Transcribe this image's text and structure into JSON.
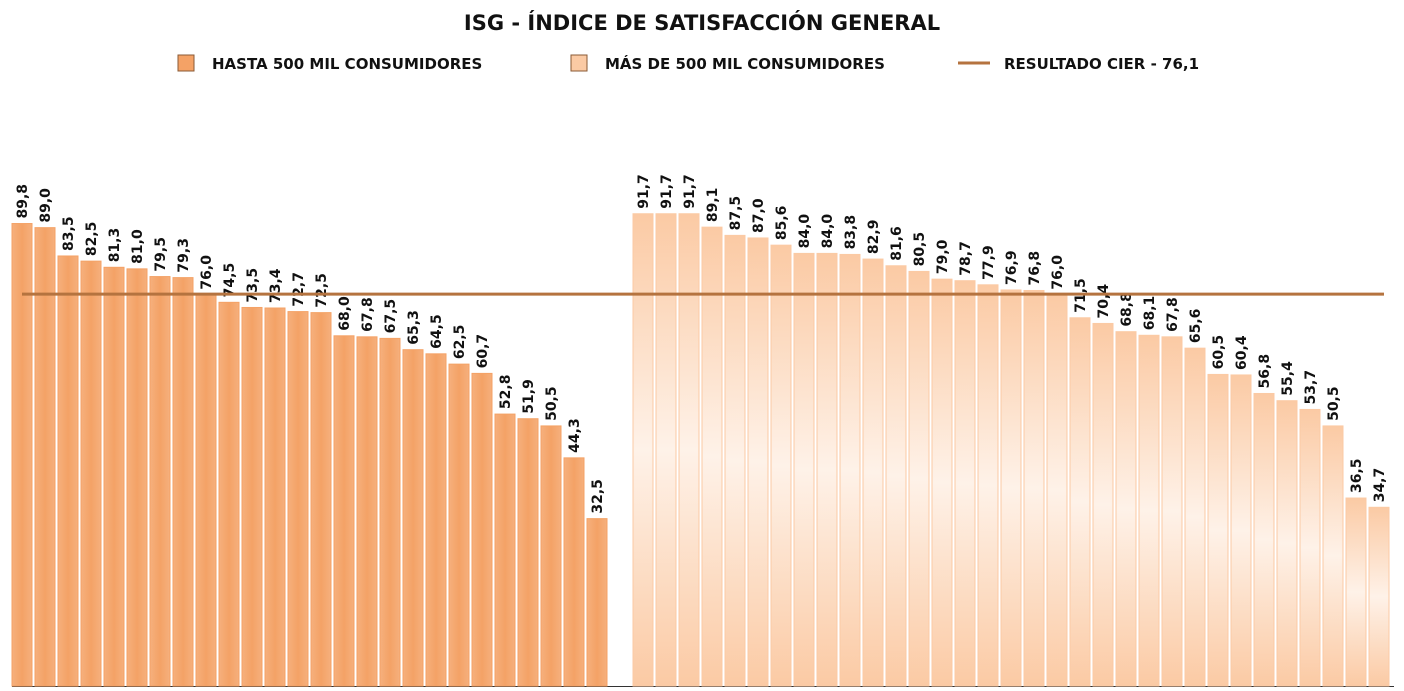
{
  "chart_data": {
    "type": "bar",
    "title": "ISG - ÍNDICE DE SATISFACCIÓN GENERAL",
    "ylim": [
      0,
      100
    ],
    "series": [
      {
        "name": "HASTA 500 MIL CONSUMIDORES",
        "color": "#f4a266",
        "values": [
          89.8,
          89.0,
          83.5,
          82.5,
          81.3,
          81.0,
          79.5,
          79.3,
          76.0,
          74.5,
          73.5,
          73.4,
          72.7,
          72.5,
          68.0,
          67.8,
          67.5,
          65.3,
          64.5,
          62.5,
          60.7,
          52.8,
          51.9,
          50.5,
          44.3,
          32.5
        ],
        "value_labels": [
          "89,8",
          "89,0",
          "83,5",
          "82,5",
          "81,3",
          "81,0",
          "79,5",
          "79,3",
          "76,0",
          "74,5",
          "73,5",
          "73,4",
          "72,7",
          "72,5",
          "68,0",
          "67,8",
          "67,5",
          "65,3",
          "64,5",
          "62,5",
          "60,7",
          "52,8",
          "51,9",
          "50,5",
          "44,3",
          "32,5"
        ]
      },
      {
        "name": "MÁS DE 500 MIL CONSUMIDORES",
        "color": "#fbcaa4",
        "values": [
          91.7,
          91.7,
          91.7,
          89.1,
          87.5,
          87.0,
          85.6,
          84.0,
          84.0,
          83.8,
          82.9,
          81.6,
          80.5,
          79.0,
          78.7,
          77.9,
          76.9,
          76.8,
          76.0,
          71.5,
          70.4,
          68.8,
          68.1,
          67.8,
          65.6,
          60.5,
          60.4,
          56.8,
          55.4,
          53.7,
          50.5,
          36.5,
          34.7
        ],
        "value_labels": [
          "91,7",
          "91,7",
          "91,7",
          "89,1",
          "87,5",
          "87,0",
          "85,6",
          "84,0",
          "84,0",
          "83,8",
          "82,9",
          "81,6",
          "80,5",
          "79,0",
          "78,7",
          "77,9",
          "76,9",
          "76,8",
          "76,0",
          "71,5",
          "70,4",
          "68,8",
          "68,1",
          "67,8",
          "65,6",
          "60,5",
          "60,4",
          "56,8",
          "55,4",
          "53,7",
          "50,5",
          "36,5",
          "34,7"
        ]
      }
    ],
    "reference_line": {
      "name": "RESULTADO CIER - 76,1",
      "value": 76.1,
      "color": "#b5733f"
    }
  }
}
